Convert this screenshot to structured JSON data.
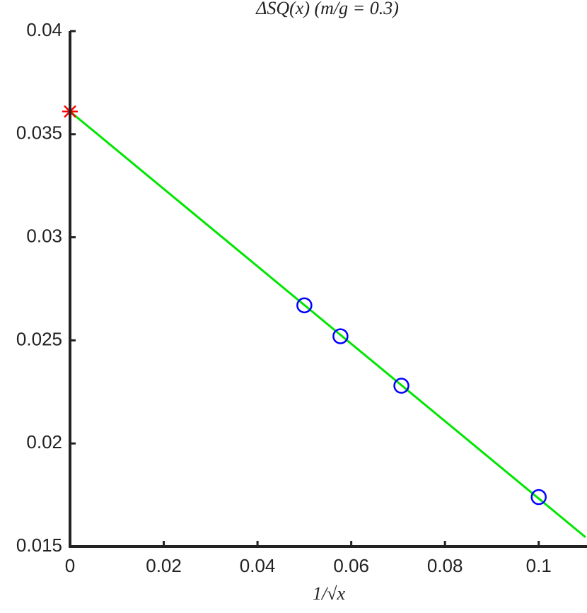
{
  "chart_data": {
    "type": "line",
    "title": "ΔSQ(x) (m/g = 0.3)",
    "x_label": "1/√x",
    "xlim": [
      0,
      0.11
    ],
    "ylim": [
      0.015,
      0.04
    ],
    "xticks": [
      0,
      0.02,
      0.04,
      0.06,
      0.08,
      0.1
    ],
    "yticks": [
      0.015,
      0.02,
      0.025,
      0.03,
      0.035,
      0.04
    ],
    "grid": false,
    "series": [
      {
        "style": "line",
        "color": "#00e600",
        "x": [
          0,
          0.11
        ],
        "values": [
          0.0361,
          0.01545
        ]
      },
      {
        "style": "circle",
        "color": "#0000ff",
        "x": [
          0.05,
          0.0577,
          0.0707,
          0.1
        ],
        "values": [
          0.0267,
          0.0252,
          0.0228,
          0.0174
        ]
      },
      {
        "style": "star",
        "color": "#ff0000",
        "x": [
          0
        ],
        "values": [
          0.0361
        ]
      }
    ]
  }
}
